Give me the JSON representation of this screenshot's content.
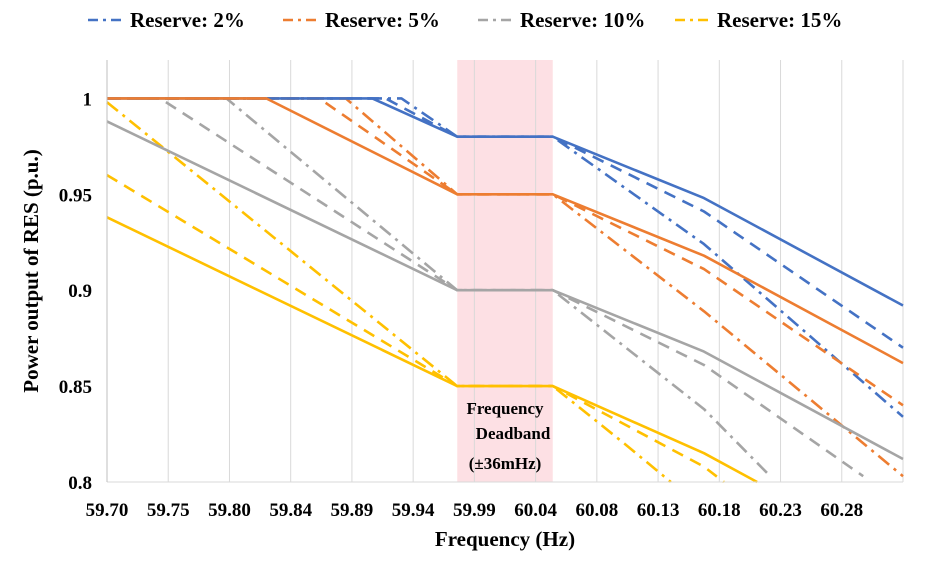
{
  "chart_data": {
    "type": "line",
    "xlabel": "Frequency (Hz)",
    "ylabel": "Power output of RES (p.u.)",
    "xlim": [
      59.7,
      60.3
    ],
    "ylim": [
      0.8,
      1.02
    ],
    "x_ticks": [
      "59.70",
      "59.75",
      "59.80",
      "59.84",
      "59.89",
      "59.94",
      "59.99",
      "60.04",
      "60.08",
      "60.13",
      "60.18",
      "60.23",
      "60.28"
    ],
    "y_ticks": [
      "1",
      "0.95",
      "0.9",
      "0.85",
      "0.8"
    ],
    "grid": "vertical",
    "legend_position": "top",
    "deadband": {
      "x_range": [
        59.964,
        60.036
      ],
      "color": "#fde0e4",
      "annotation": [
        "Frequency",
        "Deadband",
        "(±36mHz)"
      ]
    },
    "styles_order": [
      "dash-dot",
      "dashed",
      "solid"
    ],
    "series": [
      {
        "name": "Reserve: 2%",
        "color": "#4472c4",
        "lines": [
          {
            "style": "dash-dot",
            "points": [
              [
                59.7,
                1.0
              ],
              [
                59.922,
                1.0
              ],
              [
                59.964,
                0.98
              ],
              [
                60.036,
                0.98
              ],
              [
                60.15,
                0.924
              ],
              [
                60.3,
                0.834
              ]
            ]
          },
          {
            "style": "dashed",
            "points": [
              [
                59.7,
                1.0
              ],
              [
                59.91,
                1.0
              ],
              [
                59.964,
                0.98
              ],
              [
                60.036,
                0.98
              ],
              [
                60.15,
                0.941
              ],
              [
                60.3,
                0.87
              ]
            ]
          },
          {
            "style": "solid",
            "points": [
              [
                59.7,
                1.0
              ],
              [
                59.9,
                1.0
              ],
              [
                59.964,
                0.98
              ],
              [
                60.036,
                0.98
              ],
              [
                60.15,
                0.948
              ],
              [
                60.3,
                0.892
              ]
            ]
          }
        ]
      },
      {
        "name": "Reserve: 5%",
        "color": "#ed7d31",
        "lines": [
          {
            "style": "dash-dot",
            "points": [
              [
                59.7,
                1.0
              ],
              [
                59.88,
                1.0
              ],
              [
                59.964,
                0.95
              ],
              [
                60.036,
                0.95
              ],
              [
                60.15,
                0.889
              ],
              [
                60.3,
                0.803
              ]
            ]
          },
          {
            "style": "dashed",
            "points": [
              [
                59.7,
                1.0
              ],
              [
                59.86,
                1.0
              ],
              [
                59.964,
                0.95
              ],
              [
                60.036,
                0.95
              ],
              [
                60.15,
                0.911
              ],
              [
                60.3,
                0.84
              ]
            ]
          },
          {
            "style": "solid",
            "points": [
              [
                59.7,
                1.0
              ],
              [
                59.82,
                1.0
              ],
              [
                59.964,
                0.95
              ],
              [
                60.036,
                0.95
              ],
              [
                60.15,
                0.918
              ],
              [
                60.3,
                0.862
              ]
            ]
          }
        ]
      },
      {
        "name": "Reserve: 10%",
        "color": "#a5a5a5",
        "lines": [
          {
            "style": "dash-dot",
            "points": [
              [
                59.7,
                1.0
              ],
              [
                59.79,
                1.0
              ],
              [
                59.964,
                0.9
              ],
              [
                60.036,
                0.9
              ],
              [
                60.15,
                0.838
              ],
              [
                60.2,
                0.803
              ]
            ]
          },
          {
            "style": "dashed",
            "points": [
              [
                59.7,
                1.0
              ],
              [
                59.74,
                1.0
              ],
              [
                59.964,
                0.9
              ],
              [
                60.036,
                0.9
              ],
              [
                60.15,
                0.861
              ],
              [
                60.27,
                0.803
              ]
            ]
          },
          {
            "style": "solid",
            "points": [
              [
                59.7,
                0.988
              ],
              [
                59.964,
                0.9
              ],
              [
                60.036,
                0.9
              ],
              [
                60.15,
                0.868
              ],
              [
                60.3,
                0.812
              ]
            ]
          }
        ]
      },
      {
        "name": "Reserve: 15%",
        "color": "#ffc000",
        "lines": [
          {
            "style": "dash-dot",
            "points": [
              [
                59.7,
                0.998
              ],
              [
                59.964,
                0.85
              ],
              [
                60.036,
                0.85
              ],
              [
                60.09,
                0.82
              ],
              [
                60.125,
                0.8
              ]
            ]
          },
          {
            "style": "dashed",
            "points": [
              [
                59.7,
                0.96
              ],
              [
                59.964,
                0.85
              ],
              [
                60.036,
                0.85
              ],
              [
                60.15,
                0.808
              ],
              [
                60.165,
                0.8
              ]
            ]
          },
          {
            "style": "solid",
            "points": [
              [
                59.7,
                0.938
              ],
              [
                59.964,
                0.85
              ],
              [
                60.036,
                0.85
              ],
              [
                60.15,
                0.815
              ],
              [
                60.19,
                0.8
              ]
            ]
          }
        ]
      }
    ]
  }
}
